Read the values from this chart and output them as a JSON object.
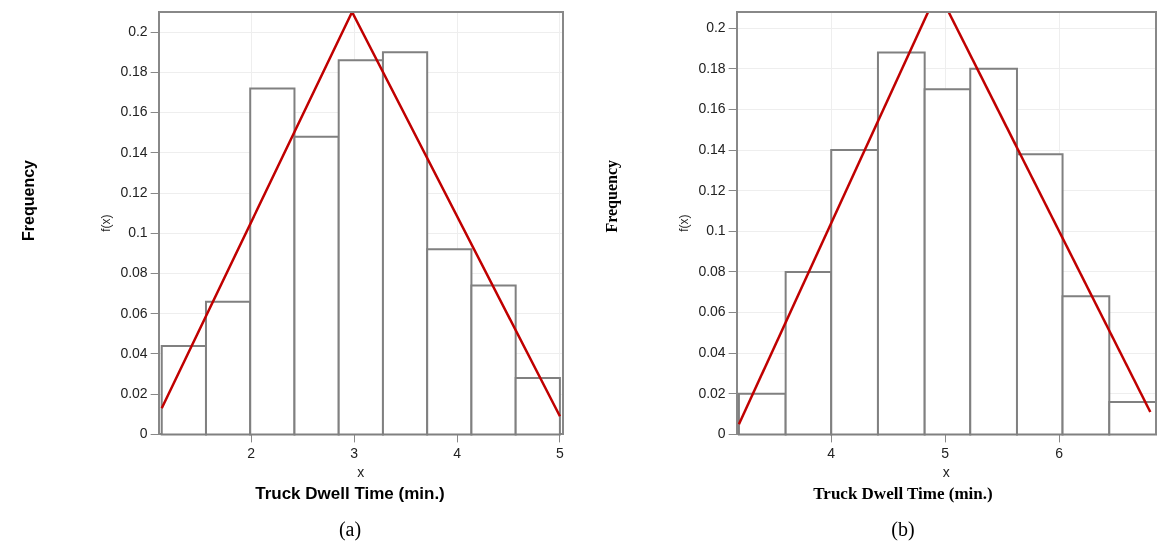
{
  "chart_data": [
    {
      "type": "histogram",
      "title": "(a)",
      "xlabel": "x",
      "ylabel": "f(x)",
      "annotations": [
        "Frequency",
        "Truck Dwell Time (min.)"
      ],
      "bins": [
        1.13,
        1.56,
        1.99,
        2.42,
        2.85,
        3.28,
        3.71,
        4.14,
        4.57,
        5.0
      ],
      "values": [
        0.044,
        0.066,
        0.172,
        0.148,
        0.186,
        0.19,
        0.092,
        0.074,
        0.028
      ],
      "color": "#808080",
      "series": [
        {
          "type": "line",
          "color": "#c00000",
          "x": [
            1.13,
            2.98,
            5.0
          ],
          "values": [
            0.013,
            0.21,
            0.009
          ]
        }
      ],
      "xlim": [
        1.1,
        5.03
      ],
      "ylim": [
        0,
        0.21
      ],
      "xticks": [
        2,
        3,
        4,
        5
      ],
      "yticks": [
        0,
        0.02,
        0.04,
        0.06,
        0.08,
        0.1,
        0.12,
        0.14,
        0.16,
        0.18,
        0.2
      ],
      "grid": true
    },
    {
      "type": "histogram",
      "title": "(b)",
      "xlabel": "x",
      "ylabel": "f(x)",
      "annotations": [
        "Frequency",
        "Truck Dwell Time (min.)"
      ],
      "bins": [
        3.19,
        3.6,
        4.0,
        4.41,
        4.82,
        5.22,
        5.63,
        6.03,
        6.44,
        6.85
      ],
      "values": [
        0.02,
        0.08,
        0.14,
        0.188,
        0.17,
        0.18,
        0.138,
        0.068,
        0.016
      ],
      "color": "#808080",
      "series": [
        {
          "type": "line",
          "color": "#c00000",
          "x": [
            3.19,
            4.85
          ],
          "values": [
            0.005,
            0.208
          ]
        },
        {
          "type": "line",
          "color": "#c00000",
          "x": [
            5.03,
            6.8
          ],
          "values": [
            0.208,
            0.011
          ]
        }
      ],
      "xlim": [
        3.17,
        6.85
      ],
      "ylim": [
        0,
        0.208
      ],
      "xticks": [
        4,
        5,
        6
      ],
      "yticks": [
        0,
        0.02,
        0.04,
        0.06,
        0.08,
        0.1,
        0.12,
        0.14,
        0.16,
        0.18,
        0.2
      ],
      "grid": true
    }
  ]
}
